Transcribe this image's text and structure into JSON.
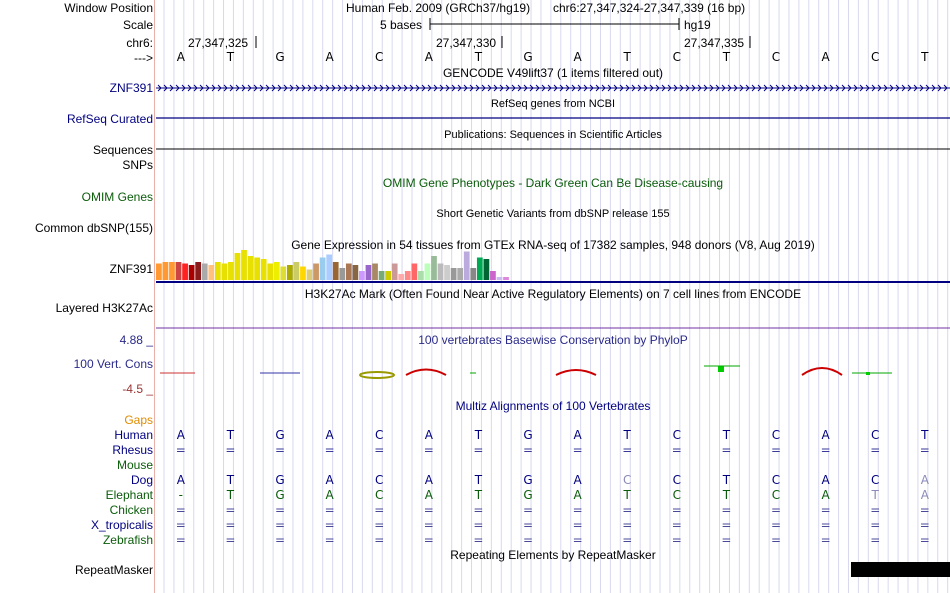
{
  "labels": {
    "window_position": "Window Position",
    "scale": "Scale",
    "chrom": "chr6:",
    "strand": "--->",
    "znf391": "ZNF391",
    "refseq": "RefSeq Curated",
    "sequences": "Sequences",
    "snps": "SNPs",
    "omim": "OMIM Genes",
    "common_dbsnp": "Common dbSNP(155)",
    "gtex_gene": "ZNF391",
    "h3k27ac": "Layered H3K27Ac",
    "phylop_max": "4.88 _",
    "phylop": "100 Vert. Cons",
    "phylop_min": "-4.5 _",
    "gaps": "Gaps",
    "human": "Human",
    "rhesus": "Rhesus",
    "mouse": "Mouse",
    "dog": "Dog",
    "elephant": "Elephant",
    "chicken": "Chicken",
    "x_tropicalis": "X_tropicalis",
    "zebrafish": "Zebrafish",
    "repeatmasker": "RepeatMasker"
  },
  "header": {
    "assembly": "Human Feb. 2009 (GRCh37/hg19)",
    "position": "chr6:27,347,324-27,347,339 (16 bp)",
    "scale_text": "5 bases",
    "scale_db": "hg19",
    "coord1": "27,347,325",
    "coord2": "27,347,330",
    "coord3": "27,347,335"
  },
  "bases": [
    "A",
    "T",
    "G",
    "A",
    "C",
    "A",
    "T",
    "G",
    "A",
    "T",
    "C",
    "T",
    "C",
    "A",
    "C",
    "T"
  ],
  "tracks": {
    "gencode": "GENCODE V49lift37 (1 items filtered out)",
    "refseq": "RefSeq genes from NCBI",
    "publications": "Publications: Sequences in Scientific Articles",
    "omim": "OMIM Gene Phenotypes - Dark Green Can Be Disease-causing",
    "dbsnp": "Short Genetic Variants from dbSNP release 155",
    "gtex": "Gene Expression in 54 tissues from GTEx RNA-seq of 17382 samples, 948 donors (V8, Aug 2019)",
    "h3k27ac": "H3K27Ac Mark (Often Found Near Active Regulatory Elements) on 7 cell lines from ENCODE",
    "phylop": "100 vertebrates Basewise Conservation by PhyloP",
    "multiz": "Multiz Alignments of 100 Vertebrates",
    "rmsk": "Repeating Elements by RepeatMasker"
  },
  "alignment": {
    "human": [
      "A",
      "T",
      "G",
      "A",
      "C",
      "A",
      "T",
      "G",
      "A",
      "T",
      "C",
      "T",
      "C",
      "A",
      "C",
      "T"
    ],
    "rhesus": [
      "=",
      "=",
      "=",
      "=",
      "=",
      "=",
      "=",
      "=",
      "=",
      "=",
      "=",
      "=",
      "=",
      "=",
      "=",
      "="
    ],
    "dog": [
      "A",
      "T",
      "G",
      "A",
      "C",
      "A",
      "T",
      "G",
      "A",
      "C",
      "C",
      "T",
      "C",
      "A",
      "C",
      "A"
    ],
    "elephant": [
      "-",
      "T",
      "G",
      "A",
      "C",
      "A",
      "T",
      "G",
      "A",
      "T",
      "C",
      "T",
      "C",
      "A",
      "T",
      "A"
    ],
    "chicken": [
      "=",
      "=",
      "=",
      "=",
      "=",
      "=",
      "=",
      "=",
      "=",
      "=",
      "=",
      "=",
      "=",
      "=",
      "=",
      "="
    ],
    "x_tropicalis": [
      "=",
      "=",
      "=",
      "=",
      "=",
      "=",
      "=",
      "=",
      "=",
      "=",
      "=",
      "=",
      "=",
      "=",
      "=",
      "="
    ],
    "zebrafish": [
      "=",
      "=",
      "=",
      "=",
      "=",
      "=",
      "=",
      "=",
      "=",
      "=",
      "=",
      "=",
      "=",
      "=",
      "=",
      "="
    ]
  },
  "gtex_levels": [
    0.55,
    0.6,
    0.6,
    0.6,
    0.55,
    0.5,
    0.6,
    0.55,
    0.5,
    0.6,
    0.55,
    0.6,
    0.9,
    1.0,
    0.8,
    0.75,
    0.7,
    0.55,
    0.6,
    0.45,
    0.5,
    0.6,
    0.45,
    0.35,
    0.55,
    0.75,
    0.85,
    0.6,
    0.4,
    0.55,
    0.5,
    0.3,
    0.5,
    0.55,
    0.3,
    0.3,
    0.55,
    0.2,
    0.3,
    0.55,
    0.3,
    0.55,
    0.8,
    0.55,
    0.5,
    0.4,
    0.4,
    0.95,
    0.4,
    0.75,
    0.7,
    0.3,
    0.1,
    0.1
  ],
  "gtex_colors": [
    "#ff9933",
    "#ff9933",
    "#ff9933",
    "#cc4444",
    "#ff2222",
    "#aa0000",
    "#8b1a1a",
    "#aaaaaa",
    "#ffc080",
    "#e8e000",
    "#e8e000",
    "#e8e000",
    "#e8e000",
    "#e8e000",
    "#e8e000",
    "#e8e000",
    "#e8e000",
    "#e8e000",
    "#eeee00",
    "#dddd33",
    "#aaaa00",
    "#cccc66",
    "#ffd700",
    "#ddcc77",
    "#cc9966",
    "#99ccee",
    "#aaccff",
    "#996633",
    "#999999",
    "#aa7755",
    "#886644",
    "#cc99ff",
    "#9966cc",
    "#aa8866",
    "#77aa77",
    "#cccc00",
    "#cc9999",
    "#ffaaaa",
    "#ff8888",
    "#ff6666",
    "#aaddaa",
    "#bbffbb",
    "#99bb99",
    "#bbbbbb",
    "#cccccc",
    "#999999",
    "#aaaaaa",
    "#bbaadd",
    "#888888",
    "#00aa55",
    "#006633",
    "#cc66cc",
    "#ccbbee",
    "#dd88dd"
  ],
  "colors": {
    "blue_label": "#000080",
    "green_label": "#0a5c0a",
    "gaps_orange": "#e08c00",
    "phylop_pos": "#2a2a8a",
    "phylop_neg": "#993333"
  }
}
